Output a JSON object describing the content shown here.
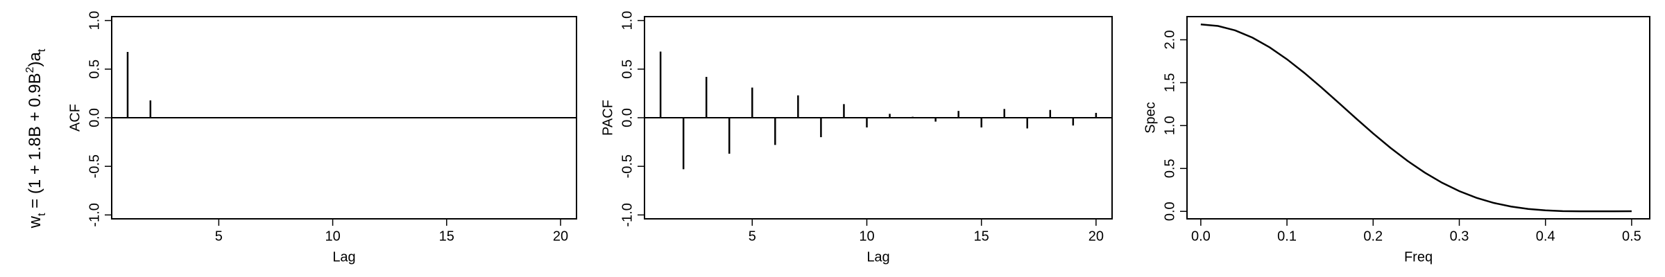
{
  "annotation": [
    "w",
    "t",
    " = (1 + 1.8B + 0.9B",
    "2",
    ")a",
    "t"
  ],
  "chart_data": [
    {
      "type": "stem",
      "ylabel": "ACF",
      "xlabel": "Lag",
      "color": "#000000",
      "x": [
        1,
        2,
        3,
        4,
        5,
        6,
        7,
        8,
        9,
        10,
        11,
        12,
        13,
        14,
        15,
        16,
        17,
        18,
        19,
        20
      ],
      "values": [
        0.677,
        0.178,
        0,
        0,
        0,
        0,
        0,
        0,
        0,
        0,
        0,
        0,
        0,
        0,
        0,
        0,
        0,
        0,
        0,
        0
      ],
      "xlim": [
        0.3,
        20.7
      ],
      "xticks": [
        5,
        10,
        15,
        20
      ],
      "ylim": [
        -1.04,
        1.04
      ],
      "yticks": [
        {
          "value": -1,
          "label": "-1.0"
        },
        -0.5,
        {
          "value": 0,
          "label": "0.0"
        },
        0.5,
        {
          "value": 1,
          "label": "1.0"
        }
      ]
    },
    {
      "type": "stem",
      "ylabel": "PACF",
      "xlabel": "Lag",
      "color": "#000000",
      "x": [
        1,
        2,
        3,
        4,
        5,
        6,
        7,
        8,
        9,
        10,
        11,
        12,
        13,
        14,
        15,
        16,
        17,
        18,
        19,
        20
      ],
      "values": [
        0.68,
        -0.53,
        0.42,
        -0.37,
        0.31,
        -0.28,
        0.23,
        -0.2,
        0.14,
        -0.1,
        0.04,
        0.01,
        -0.04,
        0.07,
        -0.1,
        0.09,
        -0.11,
        0.08,
        -0.08,
        0.05
      ],
      "xlim": [
        0.3,
        20.7
      ],
      "xticks": [
        5,
        10,
        15,
        20
      ],
      "ylim": [
        -1.04,
        1.04
      ],
      "yticks": [
        {
          "value": -1,
          "label": "-1.0"
        },
        -0.5,
        {
          "value": 0,
          "label": "0.0"
        },
        0.5,
        {
          "value": 1,
          "label": "1.0"
        }
      ]
    },
    {
      "type": "line",
      "ylabel": "Spec",
      "xlabel": "Freq",
      "color": "#000000",
      "x": [
        0,
        0.02,
        0.04,
        0.06,
        0.08,
        0.1,
        0.12,
        0.14,
        0.16,
        0.18,
        0.2,
        0.22,
        0.24,
        0.26,
        0.28,
        0.3,
        0.32,
        0.34,
        0.36,
        0.38,
        0.4,
        0.42,
        0.44,
        0.46,
        0.48,
        0.5
      ],
      "values": [
        2.179,
        2.1612,
        2.1092,
        2.0247,
        1.9112,
        1.773,
        1.6153,
        1.444,
        1.2651,
        1.0846,
        0.9084,
        0.7414,
        0.5879,
        0.4512,
        0.3334,
        0.2356,
        0.1576,
        0.0984,
        0.0561,
        0.0281,
        0.0115,
        0.0033,
        0.0004,
        0.0004,
        0.0012,
        0.0016
      ],
      "xlim": [
        -0.016,
        0.521
      ],
      "xticks": [
        {
          "value": 0,
          "label": "0.0"
        },
        0.1,
        0.2,
        0.3,
        0.4,
        {
          "value": 0.5,
          "label": "0.5"
        }
      ],
      "ylim": [
        -0.087,
        2.27
      ],
      "yticks": [
        {
          "value": 0,
          "label": "0.0"
        },
        0.5,
        {
          "value": 1,
          "label": "1.0"
        },
        1.5,
        {
          "value": 2,
          "label": "2.0"
        }
      ]
    }
  ]
}
